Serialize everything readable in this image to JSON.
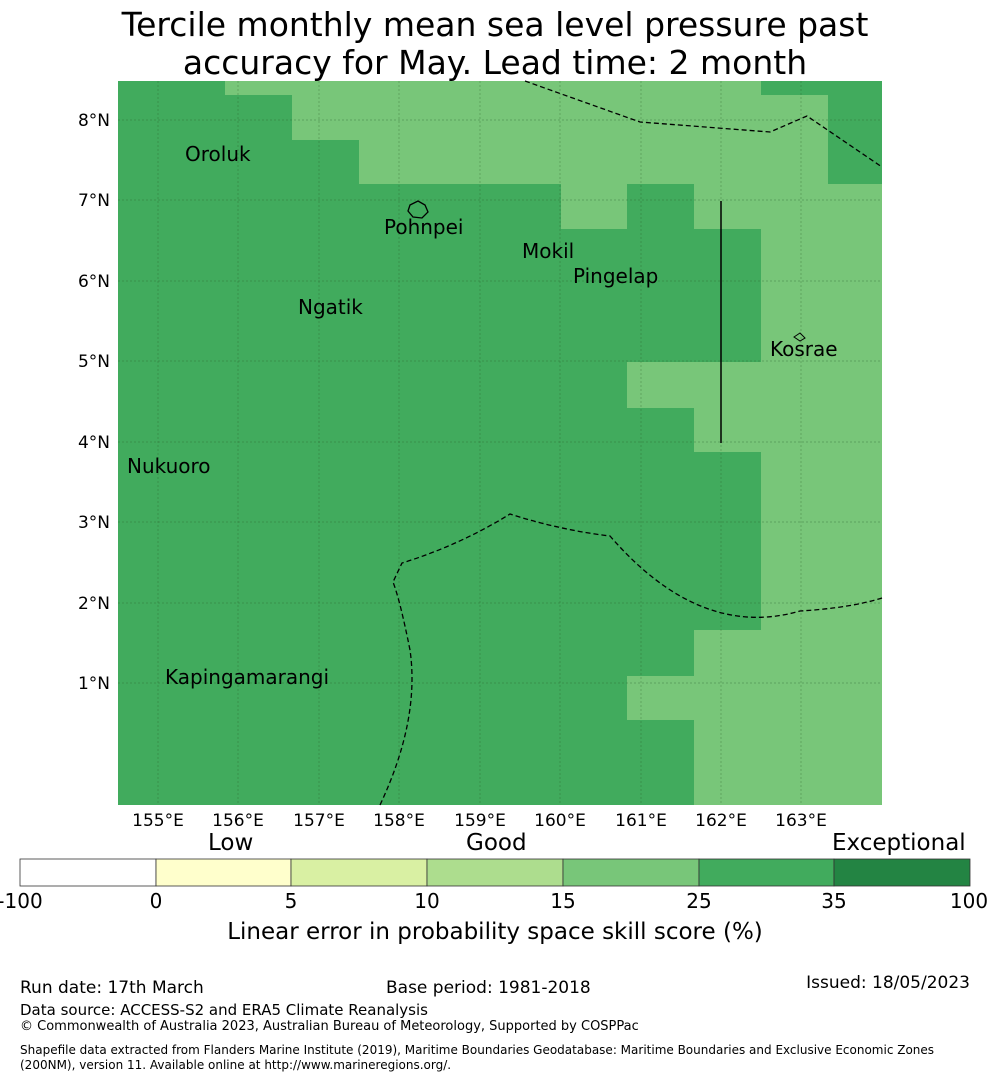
{
  "title_lines": [
    "Tercile monthly mean sea level pressure past",
    "accuracy for May. Lead time: 2 month"
  ],
  "map": {
    "lon_labels": [
      "155°E",
      "156°E",
      "157°E",
      "158°E",
      "159°E",
      "160°E",
      "161°E",
      "162°E",
      "163°E"
    ],
    "lat_labels": [
      "8°N",
      "7°N",
      "6°N",
      "5°N",
      "4°N",
      "3°N",
      "2°N",
      "1°N"
    ],
    "places": [
      "Oroluk",
      "Pohnpei",
      "Mokil",
      "Pingelap",
      "Ngatik",
      "Kosrae",
      "Nukuoro",
      "Kapingamarangi"
    ],
    "colors": {
      "good": "#78c679",
      "very_good": "#41ab5d"
    }
  },
  "colorbar": {
    "categories": [
      "Low",
      "Good",
      "Exceptional"
    ],
    "ticks": [
      "-100",
      "0",
      "5",
      "10",
      "15",
      "25",
      "35",
      "100"
    ],
    "colors": [
      "#ffffff",
      "#ffffcc",
      "#d9f0a3",
      "#addd8e",
      "#78c679",
      "#41ab5d",
      "#238443"
    ],
    "title": "Linear error in probability space skill score (%)"
  },
  "footer": {
    "run_date": "Run date: 17th March",
    "base_period": "Base period: 1981-2018",
    "issued": "Issued: 18/05/2023",
    "data_source": "Data source: ACCESS-S2 and ERA5 Climate Reanalysis",
    "copyright": "© Commonwealth of Australia 2023, Australian Bureau of Meteorology, Supported by COSPPac",
    "shapefile_1": "Shapefile data extracted from Flanders Marine Institute (2019), Maritime Boundaries Geodatabase: Maritime Boundaries and Exclusive Economic Zones",
    "shapefile_2": "(200NM), version 11. Available online at http://www.marineregions.org/."
  }
}
